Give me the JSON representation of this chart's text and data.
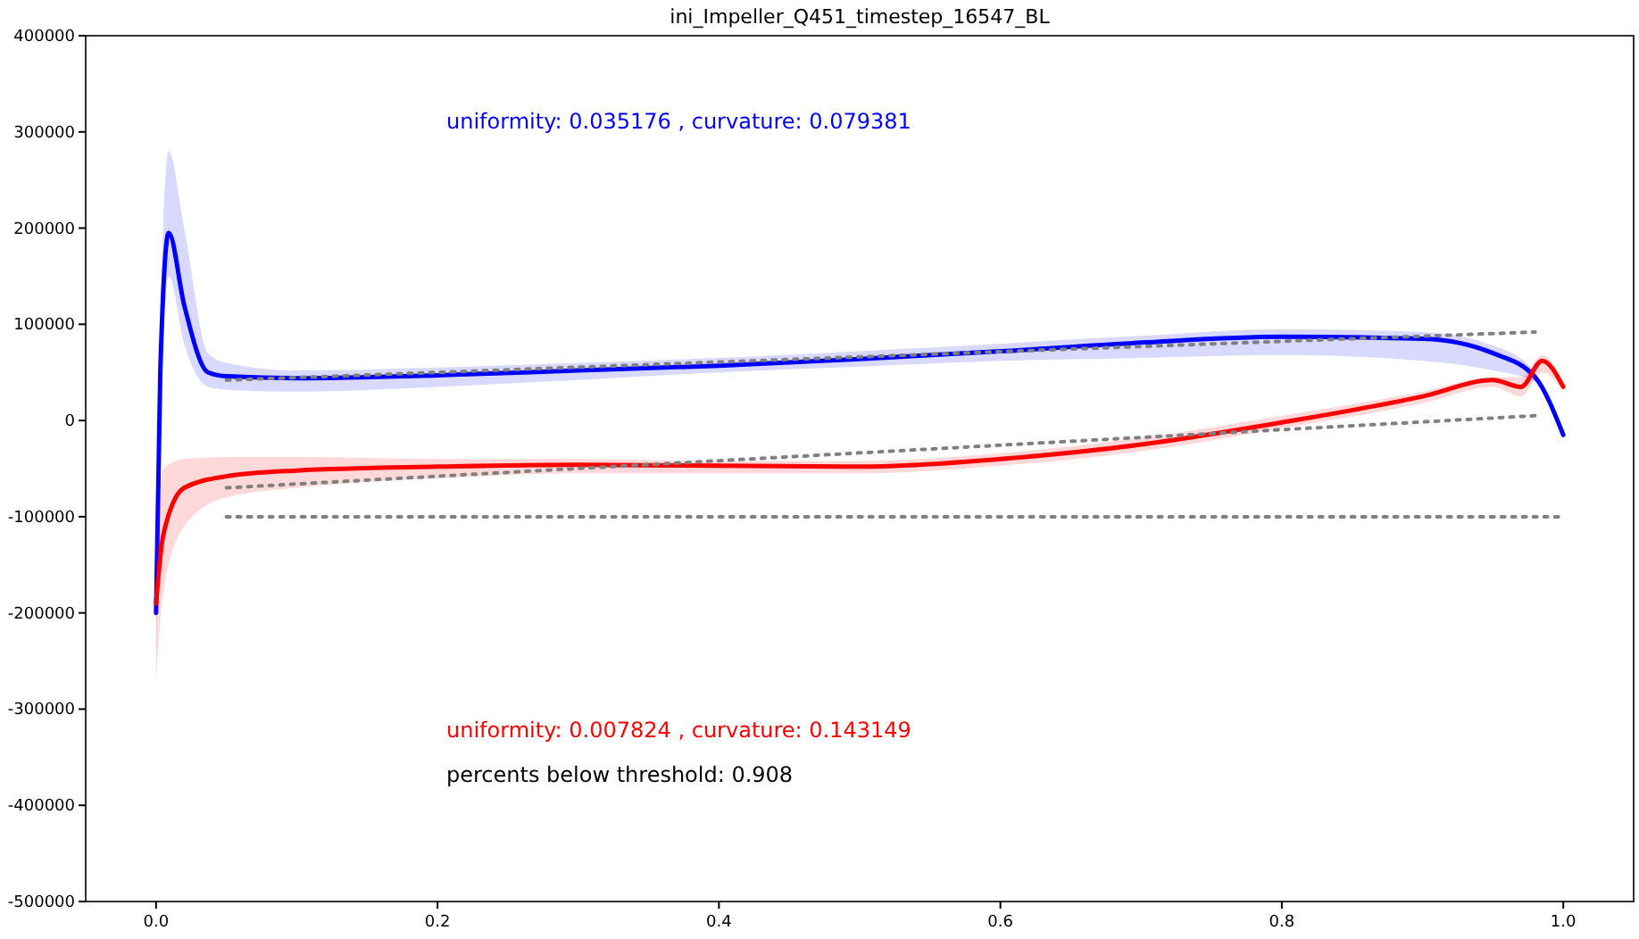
{
  "chart_data": {
    "type": "line",
    "title": "ini_Impeller_Q451_timestep_16547_BL",
    "xlim": [
      -0.05,
      1.05
    ],
    "xticks": [
      {
        "value": 0,
        "label": "0.0"
      },
      0.2,
      0.4,
      0.6,
      0.8,
      {
        "value": 1,
        "label": "1.0"
      }
    ],
    "ylim": [
      -500000,
      400000
    ],
    "yticks": [
      -500000,
      -400000,
      -300000,
      -200000,
      -100000,
      0,
      100000,
      200000,
      300000,
      400000
    ],
    "grid": false,
    "marker": "none",
    "series": [
      {
        "color": "#0000ff",
        "line_style": "solid",
        "x": [
          0,
          0.003,
          0.009,
          0.02,
          0.037,
          0.05,
          0.1,
          0.2,
          0.3,
          0.4,
          0.5,
          0.6,
          0.7,
          0.8,
          0.9,
          0.95,
          0.98,
          1.0
        ],
        "values": [
          -200000,
          50000,
          195000,
          120000,
          50000,
          46000,
          44000,
          47000,
          52000,
          57000,
          64000,
          72000,
          81000,
          87000,
          85000,
          70000,
          45000,
          -15000
        ],
        "upper": [
          -200000,
          100000,
          280000,
          200000,
          70000,
          60000,
          52000,
          55000,
          60000,
          65000,
          72000,
          80000,
          88000,
          95000,
          92000,
          78000,
          50000,
          -10000
        ],
        "lower": [
          -270000,
          0,
          150000,
          80000,
          35000,
          32000,
          30000,
          35000,
          42000,
          50000,
          56000,
          62000,
          65000,
          68000,
          62000,
          52000,
          40000,
          -20000
        ]
      },
      {
        "color": "#ff0000",
        "line_style": "solid",
        "x": [
          0,
          0.005,
          0.02,
          0.05,
          0.1,
          0.2,
          0.3,
          0.4,
          0.5,
          0.6,
          0.7,
          0.8,
          0.9,
          0.95,
          0.97,
          0.985,
          1.0
        ],
        "values": [
          -190000,
          -120000,
          -70000,
          -58000,
          -52000,
          -48000,
          -46000,
          -47000,
          -48000,
          -40000,
          -25000,
          -2000,
          25000,
          42000,
          35000,
          62000,
          35000
        ],
        "upper": [
          -150000,
          -50000,
          -40000,
          -38000,
          -38000,
          -40000,
          -40000,
          -42000,
          -42000,
          -34000,
          -18000,
          5000,
          30000,
          45000,
          45000,
          68000,
          40000
        ],
        "lower": [
          -270000,
          -180000,
          -110000,
          -80000,
          -70000,
          -60000,
          -55000,
          -55000,
          -55000,
          -47000,
          -32000,
          -8000,
          18000,
          35000,
          25000,
          50000,
          30000
        ]
      },
      {
        "color": "#808080",
        "line_style": "dotted",
        "x": [
          0.05,
          0.98
        ],
        "values": [
          42000,
          92000
        ]
      },
      {
        "color": "#808080",
        "line_style": "dotted",
        "x": [
          0.05,
          0.98
        ],
        "values": [
          -70000,
          5000
        ]
      },
      {
        "color": "#808080",
        "line_style": "dotted",
        "x": [
          0.05,
          1.0
        ],
        "values": [
          -100000,
          -100000
        ]
      }
    ],
    "annotations": [
      "uniformity: 0.035176 ,  curvature: 0.079381",
      "uniformity: 0.007824 ,  curvature: 0.143149",
      "percents below threshold: 0.908"
    ]
  }
}
